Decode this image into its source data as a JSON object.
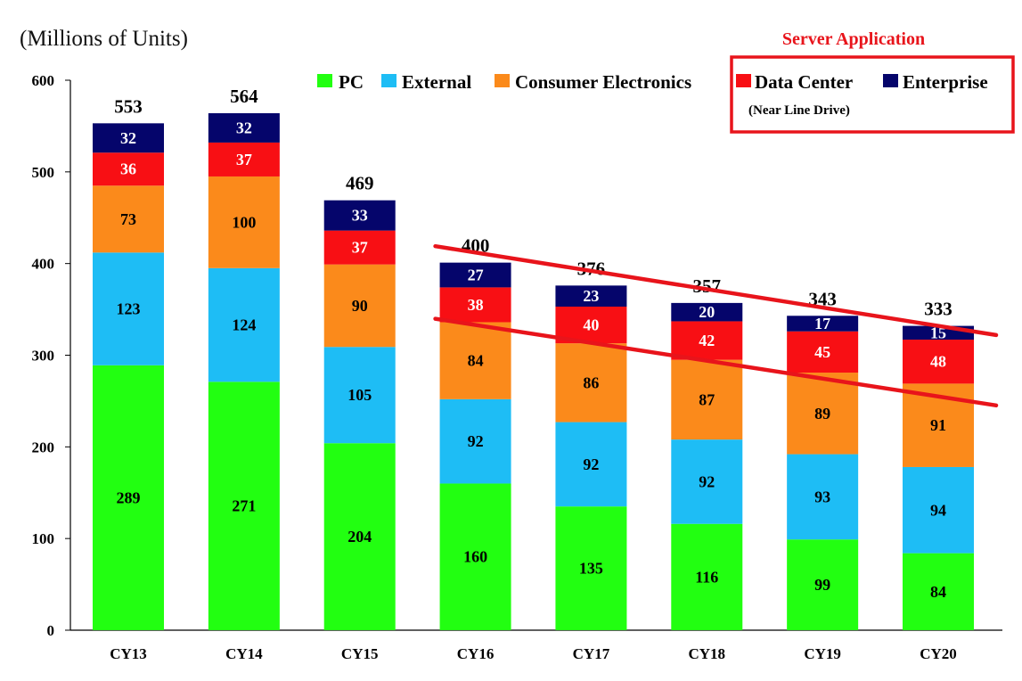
{
  "chart_data": {
    "type": "bar",
    "stacked": true,
    "unit_label": "(Millions of Units)",
    "categories": [
      "CY13",
      "CY14",
      "CY15",
      "CY16",
      "CY17",
      "CY18",
      "CY19",
      "CY20"
    ],
    "series": [
      {
        "name": "PC",
        "color": "#22ff11",
        "label_color": "#000000",
        "values": [
          289,
          271,
          204,
          160,
          135,
          116,
          99,
          84
        ]
      },
      {
        "name": "External",
        "color": "#1ebdf5",
        "label_color": "#000000",
        "values": [
          123,
          124,
          105,
          92,
          92,
          92,
          93,
          94
        ]
      },
      {
        "name": "Consumer Electronics",
        "color": "#fb8a1b",
        "label_color": "#000000",
        "values": [
          73,
          100,
          90,
          84,
          86,
          87,
          89,
          91
        ]
      },
      {
        "name": "Data Center",
        "color": "#f80f14",
        "label_color": "#ffffff",
        "values": [
          36,
          37,
          37,
          38,
          40,
          42,
          45,
          48
        ]
      },
      {
        "name": "Enterprise",
        "color": "#05056b",
        "label_color": "#ffffff",
        "values": [
          32,
          32,
          33,
          27,
          23,
          20,
          17,
          15
        ]
      }
    ],
    "totals": [
      553,
      564,
      469,
      400,
      376,
      357,
      343,
      333
    ],
    "ylim": [
      0,
      600
    ],
    "yticks": [
      0,
      100,
      200,
      300,
      400,
      500,
      600
    ],
    "grid": false,
    "legend": {
      "placement": "top",
      "group_title": "Server Application",
      "group_title_color": "#e8141b",
      "group_members": [
        "Data Center",
        "Enterprise"
      ],
      "data_center_note": "(Near Line Drive)"
    },
    "annotations": [
      {
        "type": "trend-line",
        "color": "#e8141b",
        "from": {
          "x": "CY16",
          "y": 412
        },
        "to": {
          "x": "CY20",
          "y": 332
        }
      },
      {
        "type": "trend-line",
        "color": "#e8141b",
        "from": {
          "x": "CY16",
          "y": 333
        },
        "to": {
          "x": "CY20",
          "y": 255
        }
      }
    ]
  }
}
